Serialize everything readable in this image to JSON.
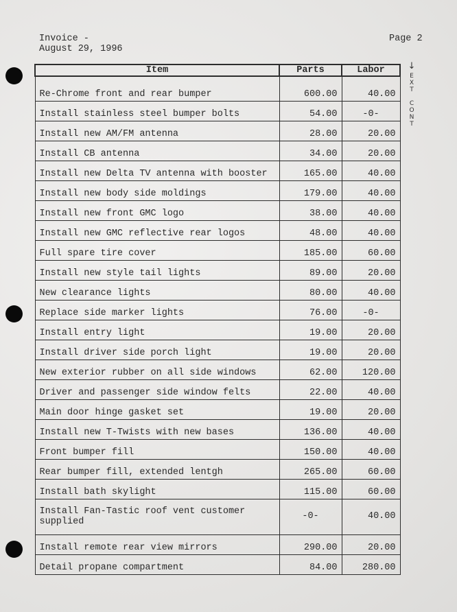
{
  "header": {
    "title": "Invoice -",
    "date": "August 29, 1996",
    "page": "Page 2"
  },
  "margin_note": {
    "arrow": "↓",
    "lines": [
      "E",
      "X",
      "T",
      "",
      "C",
      "O",
      "N",
      "T"
    ]
  },
  "table": {
    "columns": [
      "Item",
      "Parts",
      "Labor"
    ],
    "rows": [
      {
        "item": "Re-Chrome front and rear bumper",
        "parts": "600.00",
        "labor": "40.00"
      },
      {
        "item": "Install stainless steel bumper bolts",
        "parts": "54.00",
        "labor": "-0-"
      },
      {
        "item": "Install new AM/FM antenna",
        "parts": "28.00",
        "labor": "20.00"
      },
      {
        "item": "Install CB antenna",
        "parts": "34.00",
        "labor": "20.00"
      },
      {
        "item": "Install new Delta TV antenna with booster",
        "parts": "165.00",
        "labor": "40.00"
      },
      {
        "item": "Install new body side moldings",
        "parts": "179.00",
        "labor": "40.00"
      },
      {
        "item": "Install new front GMC logo",
        "parts": "38.00",
        "labor": "40.00"
      },
      {
        "item": "Install new GMC reflective rear logos",
        "parts": "48.00",
        "labor": "40.00"
      },
      {
        "item": "Full spare tire cover",
        "parts": "185.00",
        "labor": "60.00"
      },
      {
        "item": "Install new style tail lights",
        "parts": "89.00",
        "labor": "20.00"
      },
      {
        "item": "New clearance lights",
        "parts": "80.00",
        "labor": "40.00"
      },
      {
        "item": "Replace side marker lights",
        "parts": "76.00",
        "labor": "-0-"
      },
      {
        "item": "Install entry light",
        "parts": "19.00",
        "labor": "20.00"
      },
      {
        "item": "Install driver side porch light",
        "parts": "19.00",
        "labor": "20.00"
      },
      {
        "item": "New exterior rubber on all side windows",
        "parts": "62.00",
        "labor": "120.00"
      },
      {
        "item": "Driver and passenger side window felts",
        "parts": "22.00",
        "labor": "40.00"
      },
      {
        "item": "Main door hinge gasket set",
        "parts": "19.00",
        "labor": "20.00"
      },
      {
        "item": "Install new T-Twists with new bases",
        "parts": "136.00",
        "labor": "40.00"
      },
      {
        "item": "Front bumper fill",
        "parts": "150.00",
        "labor": "40.00"
      },
      {
        "item": "Rear bumper fill, extended lentgh",
        "parts": "265.00",
        "labor": "60.00"
      },
      {
        "item": "Install bath skylight",
        "parts": "115.00",
        "labor": "60.00"
      },
      {
        "item": "Install Fan-Tastic roof vent customer supplied",
        "parts": "-0-",
        "labor": "40.00"
      },
      {
        "item": "Install remote rear view mirrors",
        "parts": "290.00",
        "labor": "20.00"
      },
      {
        "item": "Detail propane compartment",
        "parts": "84.00",
        "labor": "280.00"
      }
    ]
  }
}
